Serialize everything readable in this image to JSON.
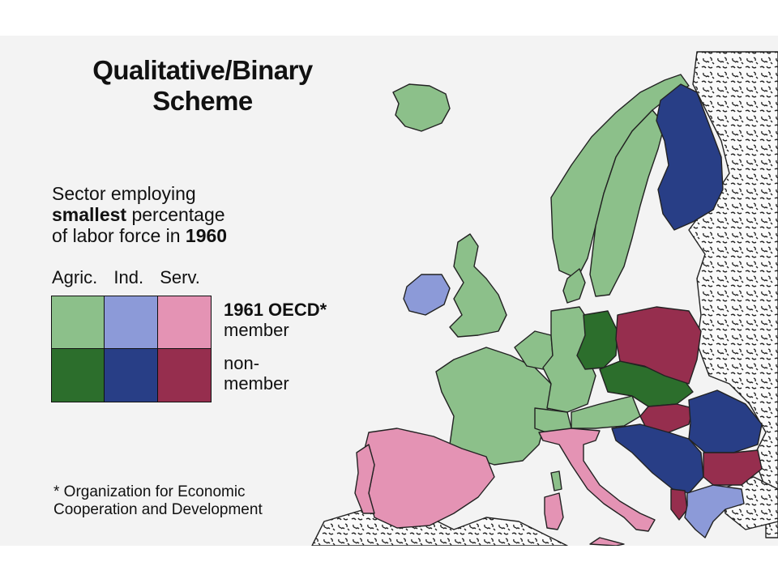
{
  "title_line1": "Qualitative/Binary",
  "title_line2": "Scheme",
  "description": {
    "line1": "Sector employing",
    "line2_bold": "smallest",
    "line2_rest": " percentage",
    "line3_pre": "of labor force in ",
    "line3_bold": "1960"
  },
  "legend": {
    "columns": [
      "Agric.",
      "Ind.",
      "Serv."
    ],
    "row1": {
      "label_bold": "1961 OECD*",
      "label_rest": "member"
    },
    "row2": {
      "label_line1": "non-",
      "label_line2": "member"
    },
    "colors": {
      "member": [
        "#8cc08a",
        "#8c9ad8",
        "#e493b4"
      ],
      "nonmember": [
        "#2c6e2c",
        "#283e86",
        "#962e4e"
      ]
    }
  },
  "footnote": {
    "line1": "* Organization for Economic",
    "line2": "Cooperation and Development"
  },
  "map": {
    "neighbor_fill": "#fafafa",
    "sea": "#f3f3f3"
  }
}
